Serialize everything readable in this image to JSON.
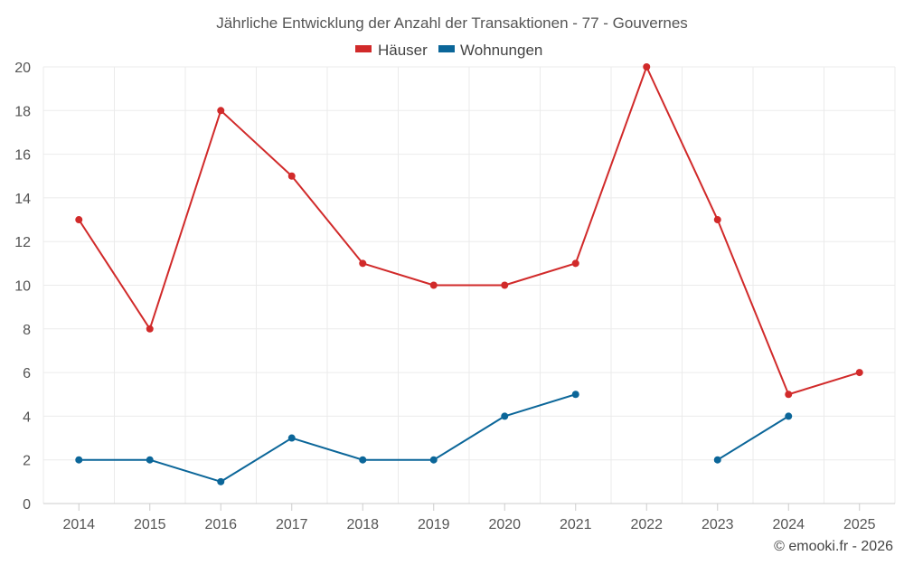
{
  "chart_data": {
    "type": "line",
    "title": "Jährliche Entwicklung der Anzahl der Transaktionen - 77 - Gouvernes",
    "categories": [
      "2014",
      "2015",
      "2016",
      "2017",
      "2018",
      "2019",
      "2020",
      "2021",
      "2022",
      "2023",
      "2024",
      "2025"
    ],
    "ylim": [
      0,
      20
    ],
    "yticks": [
      "0",
      "2",
      "4",
      "6",
      "8",
      "10",
      "12",
      "14",
      "16",
      "18",
      "20"
    ],
    "grid": true,
    "legend_position": "top-center",
    "series": [
      {
        "name": "Häuser",
        "color": "#d12a2a",
        "values": [
          13,
          8,
          18,
          15,
          11,
          10,
          10,
          11,
          20,
          13,
          5,
          6
        ]
      },
      {
        "name": "Wohnungen",
        "color": "#0b6699",
        "values": [
          2,
          2,
          1,
          3,
          2,
          2,
          4,
          5,
          null,
          2,
          4,
          null
        ]
      }
    ],
    "credit": "© emooki.fr - 2026"
  }
}
